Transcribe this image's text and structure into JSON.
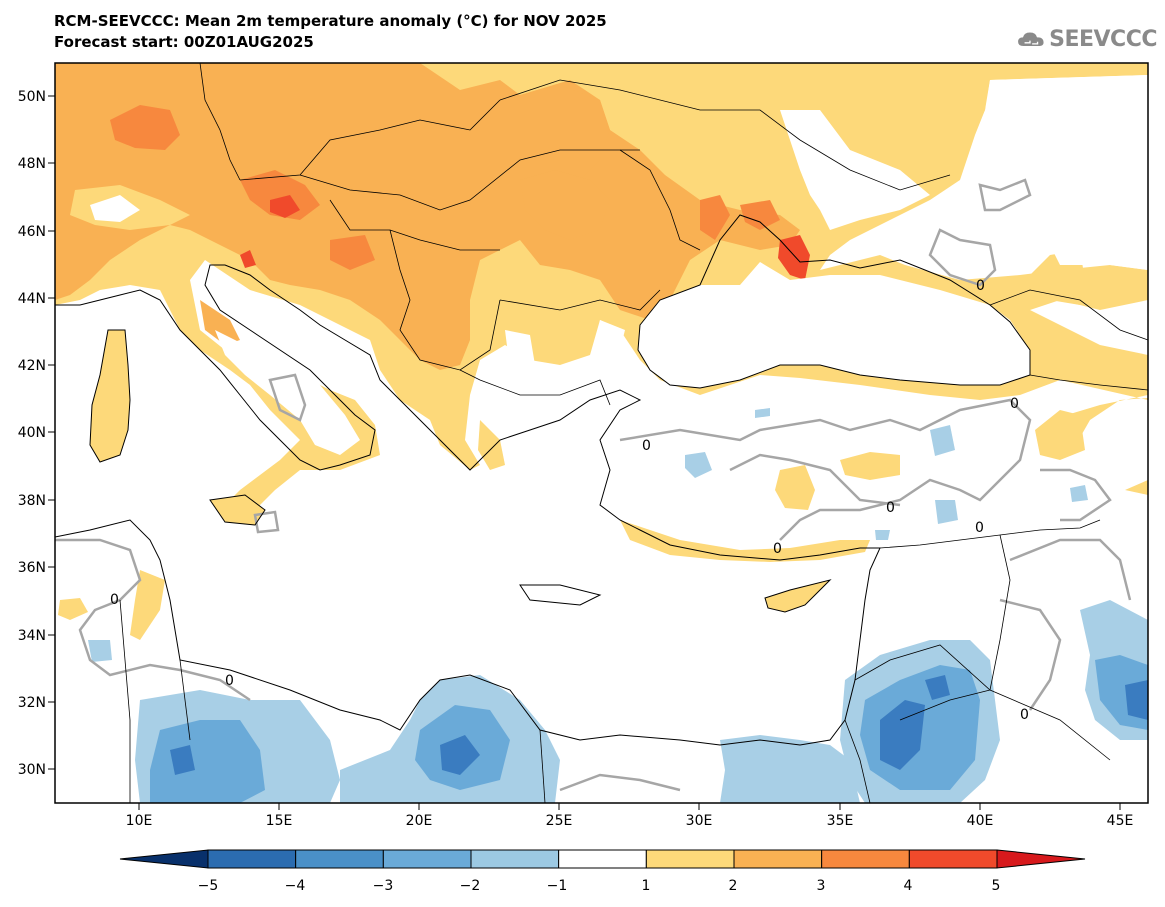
{
  "title_line1": "RCM-SEEVCCC: Mean 2m temperature anomaly (°C) for NOV 2025",
  "title_line2": "Forecast start: 00Z01AUG2025",
  "logo_text": "SEEVCCC",
  "map": {
    "lon_range": [
      7,
      46
    ],
    "lat_range": [
      29,
      51
    ],
    "lat_ticks": [
      "50N",
      "48N",
      "46N",
      "44N",
      "42N",
      "40N",
      "38N",
      "36N",
      "34N",
      "32N",
      "30N"
    ],
    "lon_ticks": [
      "10E",
      "15E",
      "20E",
      "25E",
      "30E",
      "35E",
      "40E",
      "45E"
    ],
    "contour_label": "0"
  },
  "colorbar": {
    "labels": [
      "−5",
      "−4",
      "−3",
      "−2",
      "−1",
      "1",
      "2",
      "3",
      "4",
      "5"
    ],
    "colors": [
      "#08306b",
      "#2b6cb0",
      "#4a90c8",
      "#6aaad8",
      "#9cc9e3",
      "#ffffff",
      "#fdd97a",
      "#f9b153",
      "#f7883e",
      "#f04a2b",
      "#d7191c"
    ]
  },
  "palette": {
    "orange_light": "#fdd97a",
    "orange_mid": "#f9b153",
    "orange_dark": "#f7883e",
    "red": "#f04a2b",
    "blue_light": "#a8cfe6",
    "blue_mid": "#6aaad8",
    "blue_dark": "#3a7cc0",
    "contour_gray": "#a6a6a6"
  }
}
